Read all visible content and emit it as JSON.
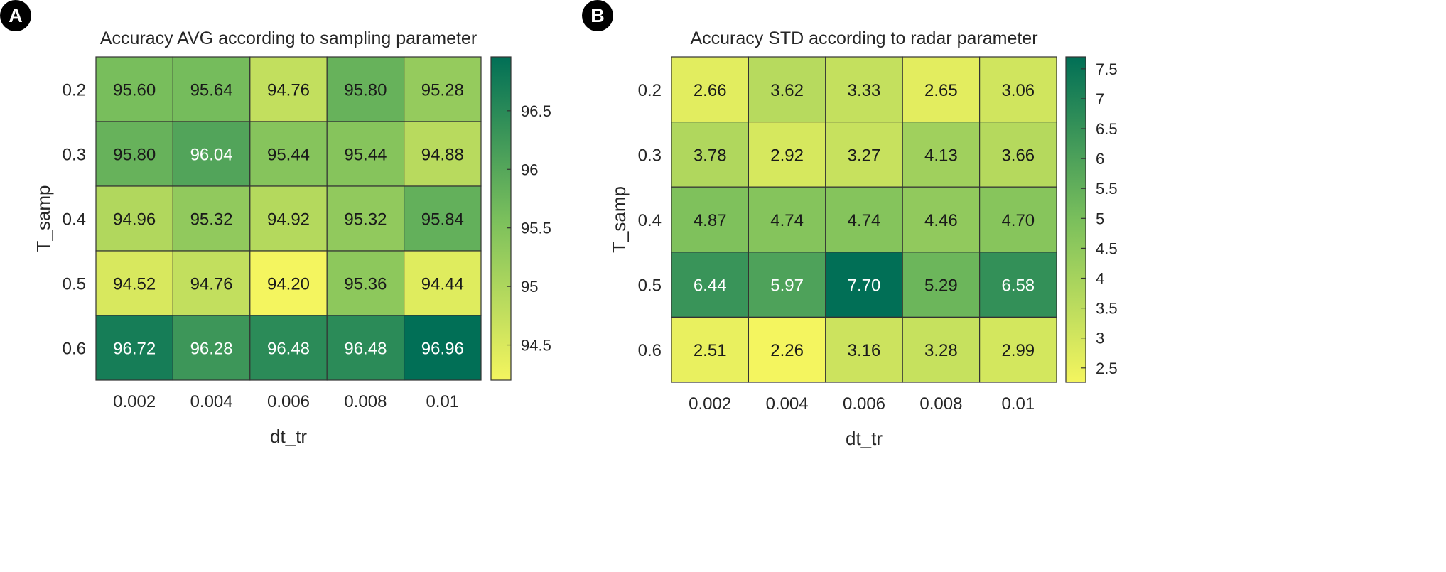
{
  "chart_data": [
    {
      "type": "heatmap",
      "panel_label": "A",
      "title": "Accuracy AVG according to sampling parameter",
      "xlabel": "dt_tr",
      "ylabel": "T_samp",
      "x_categories": [
        "0.002",
        "0.004",
        "0.006",
        "0.008",
        "0.01"
      ],
      "y_categories": [
        "0.2",
        "0.3",
        "0.4",
        "0.5",
        "0.6"
      ],
      "values": [
        [
          "95.60",
          "95.64",
          "94.76",
          "95.80",
          "95.28"
        ],
        [
          "95.80",
          "96.04",
          "95.44",
          "95.44",
          "94.88"
        ],
        [
          "94.96",
          "95.32",
          "94.92",
          "95.32",
          "95.84"
        ],
        [
          "94.52",
          "94.76",
          "94.20",
          "95.36",
          "94.44"
        ],
        [
          "96.72",
          "96.28",
          "96.48",
          "96.48",
          "96.96"
        ]
      ],
      "colorbar": {
        "min": 94.2,
        "max": 96.96,
        "ticks": [
          "94.5",
          "95",
          "95.5",
          "96",
          "96.5"
        ],
        "colormap": [
          "#f4f55f",
          "#016f56"
        ]
      }
    },
    {
      "type": "heatmap",
      "panel_label": "B",
      "title": "Accuracy STD according to radar parameter",
      "xlabel": "dt_tr",
      "ylabel": "T_samp",
      "x_categories": [
        "0.002",
        "0.004",
        "0.006",
        "0.008",
        "0.01"
      ],
      "y_categories": [
        "0.2",
        "0.3",
        "0.4",
        "0.5",
        "0.6"
      ],
      "values": [
        [
          "2.66",
          "3.62",
          "3.33",
          "2.65",
          "3.06"
        ],
        [
          "3.78",
          "2.92",
          "3.27",
          "4.13",
          "3.66"
        ],
        [
          "4.87",
          "4.74",
          "4.74",
          "4.46",
          "4.70"
        ],
        [
          "6.44",
          "5.97",
          "7.70",
          "5.29",
          "6.58"
        ],
        [
          "2.51",
          "2.26",
          "3.16",
          "3.28",
          "2.99"
        ]
      ],
      "colorbar": {
        "min": 2.26,
        "max": 7.7,
        "ticks": [
          "2.5",
          "3",
          "3.5",
          "4",
          "4.5",
          "5",
          "5.5",
          "6",
          "6.5",
          "7",
          "7.5"
        ],
        "colormap": [
          "#f4f55f",
          "#016f56"
        ]
      }
    }
  ]
}
